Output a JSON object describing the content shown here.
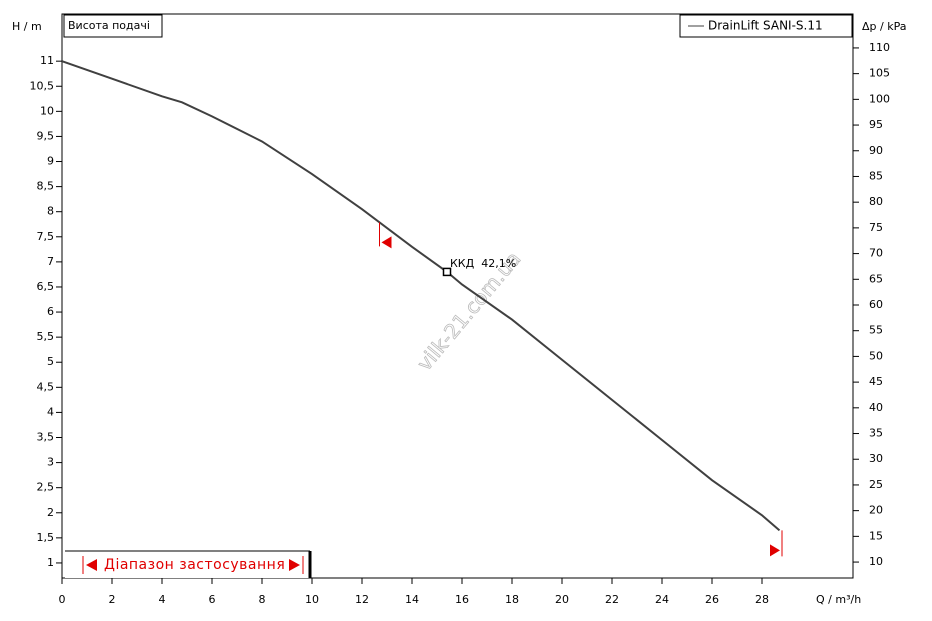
{
  "chart_data": {
    "type": "line",
    "title": "Висота подачі",
    "x_label": "Q / m³/h",
    "y_label": "H / m",
    "y2_label": "Δp / kPa",
    "legend": "top-right",
    "x": [
      0,
      2,
      4,
      4.8,
      6,
      8,
      10,
      12,
      14,
      15.4,
      16,
      18,
      20,
      22,
      24,
      26,
      28,
      28.7
    ],
    "series": [
      {
        "name": "DrainLift SANI-S.11",
        "color": "#404040",
        "values": [
          11,
          10.65,
          10.3,
          10.18,
          9.9,
          9.4,
          8.75,
          8.05,
          7.3,
          6.8,
          6.55,
          5.85,
          5.05,
          4.25,
          3.45,
          2.65,
          1.95,
          1.65
        ]
      }
    ],
    "xlim": [
      0,
      31.64
    ],
    "xticks": [
      0,
      2,
      4,
      6,
      8,
      10,
      12,
      14,
      16,
      18,
      20,
      22,
      24,
      26,
      28
    ],
    "ylim": [
      0.7,
      11.94
    ],
    "yticks": [
      1,
      {
        "value": 1.5,
        "label": "1,5"
      },
      2,
      {
        "value": 2.5,
        "label": "2,5"
      },
      3,
      {
        "value": 3.5,
        "label": "3,5"
      },
      4,
      {
        "value": 4.5,
        "label": "4,5"
      },
      5,
      {
        "value": 5.5,
        "label": "5,5"
      },
      6,
      {
        "value": 6.5,
        "label": "6,5"
      },
      7,
      {
        "value": 7.5,
        "label": "7,5"
      },
      8,
      {
        "value": 8.5,
        "label": "8,5"
      },
      9,
      {
        "value": 9.5,
        "label": "9,5"
      },
      10,
      {
        "value": 10.5,
        "label": "10,5"
      },
      11
    ],
    "y2lim": [
      6.9,
      116.6
    ],
    "y2ticks": [
      10,
      15,
      20,
      25,
      30,
      35,
      40,
      45,
      50,
      55,
      60,
      65,
      70,
      75,
      80,
      85,
      90,
      95,
      100,
      105,
      110
    ],
    "grid": false,
    "duty_point": {
      "label": "ККД  42,1%",
      "x": 15.4,
      "y": 6.8
    },
    "application_range": {
      "label": "Діапазон застосування",
      "min": 12.7,
      "max": 28.8,
      "color": "#e00000"
    },
    "watermark": "vilk-21.com.ua"
  }
}
